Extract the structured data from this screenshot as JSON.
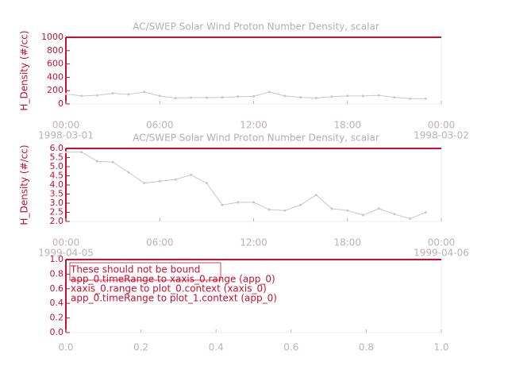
{
  "chart_data": [
    {
      "type": "line",
      "title": "AC/SWEP  Solar Wind Proton Number Density, scalar",
      "y_label": "H_Density (#/cc)",
      "x": [
        0,
        1,
        2,
        3,
        4,
        5,
        6,
        7,
        8,
        9,
        10,
        11,
        12,
        13,
        14,
        15,
        16,
        17,
        18,
        19,
        20,
        21,
        22,
        23
      ],
      "series": [
        {
          "color": "#c8c8c8",
          "values": [
            150,
            120,
            130,
            160,
            145,
            180,
            120,
            90,
            95,
            95,
            100,
            110,
            115,
            180,
            120,
            100,
            90,
            110,
            120,
            120,
            130,
            100,
            80,
            80
          ]
        }
      ],
      "xlim": [
        0,
        24
      ],
      "xticks": [
        {
          "value": 0,
          "label": "00:00"
        },
        {
          "value": 6,
          "label": "06:00"
        },
        {
          "value": 12,
          "label": "12:00"
        },
        {
          "value": 18,
          "label": "18:00"
        },
        {
          "value": 24,
          "label": "00:00"
        }
      ],
      "xtick_sublabels": [
        {
          "value": 0,
          "label": "1998-03-01"
        },
        {
          "value": 24,
          "label": "1998-03-02"
        }
      ],
      "ylim": [
        0,
        1000
      ],
      "yticks": [
        0,
        200,
        400,
        600,
        800,
        1000
      ]
    },
    {
      "type": "line",
      "title": "AC/SWEP  Solar Wind Proton Number Density, scalar",
      "y_label": "H_Density (#/cc)",
      "x": [
        0,
        1,
        2,
        3,
        4,
        5,
        6,
        7,
        8,
        9,
        10,
        11,
        12,
        13,
        14,
        15,
        16,
        17,
        18,
        19,
        20,
        21,
        22,
        23
      ],
      "series": [
        {
          "color": "#c8c8c8",
          "values": [
            5.8,
            5.8,
            5.3,
            5.25,
            4.7,
            4.1,
            4.2,
            4.3,
            4.55,
            4.1,
            2.9,
            3.05,
            3.05,
            2.65,
            2.6,
            2.9,
            3.45,
            2.7,
            2.6,
            2.35,
            2.7,
            2.4,
            2.15,
            2.5
          ]
        }
      ],
      "xlim": [
        0,
        24
      ],
      "xticks": [
        {
          "value": 0,
          "label": "00:00"
        },
        {
          "value": 6,
          "label": "06:00"
        },
        {
          "value": 12,
          "label": "12:00"
        },
        {
          "value": 18,
          "label": "18:00"
        },
        {
          "value": 24,
          "label": "00:00"
        }
      ],
      "xtick_sublabels": [
        {
          "value": 0,
          "label": "1999-04-05"
        },
        {
          "value": 24,
          "label": "1999-04-06"
        }
      ],
      "ylim": [
        2.0,
        6.0
      ],
      "yticks": [
        {
          "value": 2,
          "label": "2.0"
        },
        {
          "value": 2.5,
          "label": "2.5"
        },
        {
          "value": 3,
          "label": "3.0"
        },
        {
          "value": 3.5,
          "label": "3.5"
        },
        {
          "value": 4,
          "label": "4.0"
        },
        {
          "value": 4.5,
          "label": "4.5"
        },
        {
          "value": 5,
          "label": "5.0"
        },
        {
          "value": 5.5,
          "label": "5.5"
        },
        {
          "value": 6,
          "label": "6.0"
        }
      ]
    },
    {
      "type": "empty",
      "annotations": [
        "These should not be bound",
        "app_0.timeRange to xaxis_0.range  (app_0)",
        "xaxis_0.range to plot_0.context  (xaxis_0)",
        "app_0.timeRange to plot_1.context  (app_0)"
      ],
      "xlim": [
        0,
        1
      ],
      "xticks": [
        {
          "value": 0,
          "label": "0.0"
        },
        0.2,
        0.4,
        0.6,
        0.8,
        {
          "value": 1,
          "label": "1.0"
        }
      ],
      "ylim": [
        0,
        1
      ],
      "yticks": [
        {
          "value": 0,
          "label": "0.0"
        },
        0.2,
        0.4,
        0.6,
        0.8,
        {
          "value": 1,
          "label": "1.0"
        }
      ]
    }
  ]
}
